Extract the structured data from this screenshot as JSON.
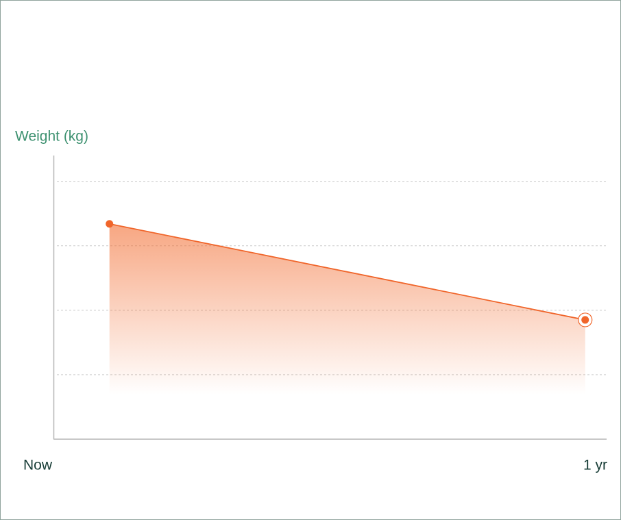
{
  "chart_data": {
    "type": "area",
    "y_label": "Weight (kg)",
    "x": [
      0.1,
      0.96
    ],
    "values": [
      3.34,
      1.85
    ],
    "xlim": [
      0,
      1
    ],
    "xticks": [
      {
        "value": 0,
        "label": "Now"
      },
      {
        "value": 1,
        "label": "1 yr"
      }
    ],
    "ylim": [
      0,
      4.4
    ],
    "yticks": [
      1,
      2,
      3,
      4
    ],
    "grid": true,
    "color": "#f0652a"
  }
}
